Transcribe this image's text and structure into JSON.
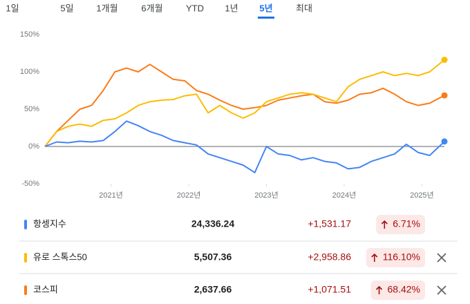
{
  "tabs": [
    "1일",
    "5일",
    "1개월",
    "6개월",
    "YTD",
    "1년",
    "5년",
    "최대"
  ],
  "active_tab": 6,
  "chart_data": {
    "type": "line",
    "x": [
      2020.15,
      2020.3,
      2020.45,
      2020.6,
      2020.75,
      2020.9,
      2021.05,
      2021.2,
      2021.35,
      2021.5,
      2021.65,
      2021.8,
      2021.95,
      2022.1,
      2022.25,
      2022.4,
      2022.55,
      2022.7,
      2022.85,
      2023.0,
      2023.15,
      2023.3,
      2023.45,
      2023.6,
      2023.75,
      2023.9,
      2024.05,
      2024.2,
      2024.35,
      2024.5,
      2024.65,
      2024.8,
      2024.95,
      2025.1,
      2025.29
    ],
    "xlim": [
      2020.15,
      2025.29
    ],
    "xticks": [
      {
        "value": 2021,
        "label": "2021년"
      },
      {
        "value": 2022,
        "label": "2022년"
      },
      {
        "value": 2023,
        "label": "2023년"
      },
      {
        "value": 2024,
        "label": "2024년"
      },
      {
        "value": 2025,
        "label": "2025년"
      }
    ],
    "ylim": [
      -50,
      150
    ],
    "yticks": [
      {
        "value": -50,
        "label": "-50%"
      },
      {
        "value": 0,
        "label": "0%"
      },
      {
        "value": 50,
        "label": "50%"
      },
      {
        "value": 100,
        "label": "100%"
      },
      {
        "value": 150,
        "label": "150%"
      }
    ],
    "series": [
      {
        "name": "항셍지수",
        "color": "#4285f4",
        "values": [
          0,
          6,
          5,
          7,
          6,
          8,
          20,
          34,
          28,
          20,
          15,
          8,
          5,
          2,
          -10,
          -15,
          -20,
          -25,
          -35,
          0,
          -10,
          -12,
          -18,
          -15,
          -20,
          -22,
          -30,
          -28,
          -20,
          -15,
          -10,
          3,
          -8,
          -12,
          6.71
        ]
      },
      {
        "name": "유로 스톡스50",
        "color": "#fbbc04",
        "values": [
          0,
          20,
          27,
          30,
          27,
          35,
          37,
          45,
          55,
          60,
          62,
          63,
          68,
          70,
          45,
          55,
          45,
          38,
          45,
          60,
          65,
          70,
          72,
          70,
          65,
          60,
          80,
          90,
          95,
          100,
          95,
          98,
          95,
          100,
          116.1
        ]
      },
      {
        "name": "코스피",
        "color": "#fa7b17",
        "values": [
          0,
          20,
          35,
          50,
          55,
          75,
          100,
          105,
          100,
          110,
          100,
          90,
          88,
          75,
          70,
          62,
          55,
          50,
          52,
          55,
          62,
          65,
          68,
          70,
          60,
          58,
          62,
          70,
          72,
          78,
          70,
          60,
          55,
          58,
          68.42
        ]
      }
    ]
  },
  "table": {
    "rows": [
      {
        "price": "24,336.24",
        "change": "+1,531.17",
        "percent": "6.71%",
        "removable": false
      },
      {
        "price": "5,507.36",
        "change": "+2,958.86",
        "percent": "116.10%",
        "removable": true
      },
      {
        "price": "2,637.66",
        "change": "+1,071.51",
        "percent": "68.42%",
        "removable": true
      }
    ]
  }
}
